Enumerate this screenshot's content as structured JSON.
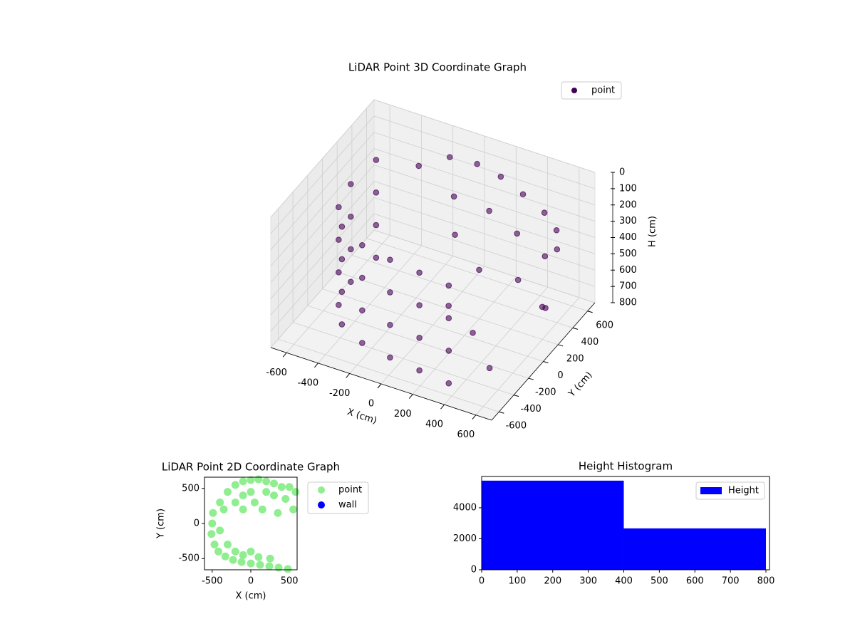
{
  "chart_data": [
    {
      "type": "scatter3d",
      "title": "LiDAR Point 3D Coordinate Graph",
      "xlabel": "X (cm)",
      "ylabel": "Y (cm)",
      "zlabel": "H (cm)",
      "xlim": [
        -700,
        700
      ],
      "ylim": [
        -700,
        700
      ],
      "zlim": [
        800,
        0
      ],
      "xticks": [
        -600,
        -400,
        -200,
        0,
        200,
        400,
        600
      ],
      "yticks": [
        -600,
        -400,
        -200,
        0,
        200,
        400,
        600
      ],
      "zticks": [
        0,
        100,
        200,
        300,
        400,
        500,
        600,
        700,
        800
      ],
      "grid": true,
      "legend": "upper right",
      "series": [
        {
          "name": "point",
          "color": "#440154",
          "x": [
            -500,
            -500,
            -500,
            -500,
            -520,
            -520,
            -520,
            -520,
            -480,
            -480,
            -480,
            -480,
            -380,
            -380,
            -380,
            -380,
            -200,
            -200,
            -200,
            -200,
            0,
            0,
            0,
            0,
            200,
            200,
            200,
            200,
            400,
            400,
            400,
            400,
            -300,
            -150,
            0,
            150,
            300,
            450,
            550,
            600,
            -100,
            100,
            300,
            500,
            0,
            200,
            400,
            600,
            100,
            300,
            500,
            550
          ],
          "y": [
            300,
            300,
            300,
            300,
            0,
            0,
            0,
            0,
            -250,
            -250,
            -250,
            -250,
            -420,
            -420,
            -420,
            -420,
            -530,
            -530,
            -530,
            -530,
            -580,
            -580,
            -580,
            -580,
            -610,
            -610,
            -610,
            -610,
            -640,
            -640,
            -640,
            -640,
            450,
            550,
            600,
            600,
            580,
            550,
            500,
            400,
            500,
            550,
            500,
            450,
            300,
            200,
            300,
            200,
            0,
            -100,
            -300,
            350
          ],
          "z": [
            100,
            300,
            500,
            700,
            100,
            300,
            500,
            700,
            100,
            300,
            500,
            700,
            100,
            300,
            500,
            700,
            100,
            300,
            500,
            700,
            100,
            300,
            500,
            700,
            100,
            300,
            500,
            700,
            100,
            300,
            500,
            700,
            150,
            100,
            120,
            150,
            200,
            250,
            300,
            350,
            300,
            350,
            400,
            450,
            400,
            500,
            550,
            600,
            650,
            700,
            750,
            700
          ]
        }
      ]
    },
    {
      "type": "scatter",
      "title": "LiDAR Point 2D Coordinate Graph",
      "xlabel": "X (cm)",
      "ylabel": "Y (cm)",
      "xlim": [
        -600,
        600
      ],
      "ylim": [
        -660,
        660
      ],
      "xticks": [
        -500,
        0,
        500
      ],
      "yticks": [
        -500,
        0,
        500
      ],
      "legend": "outside right",
      "series": [
        {
          "name": "point",
          "color": "#90ee90",
          "x": [
            -500,
            -510,
            -490,
            -470,
            -420,
            -330,
            -230,
            -120,
            0,
            120,
            240,
            360,
            480,
            -400,
            -350,
            -400,
            -300,
            -200,
            -100,
            0,
            100,
            250,
            -300,
            -200,
            -100,
            0,
            100,
            200,
            300,
            400,
            500,
            580,
            -100,
            0,
            -200,
            200,
            300,
            150,
            350,
            550,
            450,
            -100,
            50
          ],
          "y": [
            0,
            -150,
            150,
            -300,
            -400,
            -470,
            -520,
            -550,
            -570,
            -590,
            -610,
            -630,
            -650,
            300,
            200,
            -100,
            -300,
            -400,
            -450,
            -400,
            -480,
            -500,
            450,
            550,
            600,
            620,
            630,
            600,
            570,
            520,
            520,
            450,
            400,
            450,
            300,
            450,
            400,
            200,
            150,
            200,
            350,
            200,
            300
          ]
        },
        {
          "name": "wall",
          "color": "#0000ff",
          "x": [],
          "y": []
        }
      ]
    },
    {
      "type": "histogram",
      "title": "Height Histogram",
      "xlim": [
        0,
        810
      ],
      "ylim": [
        0,
        6020
      ],
      "xticks": [
        0,
        100,
        200,
        300,
        400,
        500,
        600,
        700,
        800
      ],
      "yticks": [
        0,
        2000,
        4000
      ],
      "legend": "upper right",
      "series": [
        {
          "name": "Height",
          "color": "#0000ff",
          "bins": [
            0,
            400,
            800
          ],
          "values": [
            5750,
            2670
          ]
        }
      ]
    }
  ]
}
